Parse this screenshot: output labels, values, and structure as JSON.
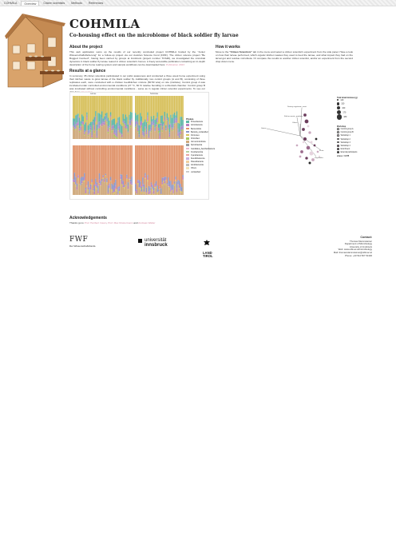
{
  "nav": {
    "items": [
      {
        "label": "COHMILA"
      },
      {
        "label": "Overview"
      },
      {
        "label": "Citizen scientists"
      },
      {
        "label": "Methods"
      },
      {
        "label": "References"
      }
    ]
  },
  "header": {
    "title": "COHMILA",
    "subtitle": "Co-housing effect on the microbiome of black soldier fly larvae"
  },
  "about": {
    "heading": "About the project",
    "text": "This web application sums up the results of our recently concluded project COHMILA funded by the \"Junior Wissenschaftsförderung\" for a follow-up project via our Austrian Science Fund (FWF). The citizen science project \"Be Bugged Involved\", having been carried by groups at Innsbruck (project number TCS48), we investigated the microbial dynamics in black soldier fly larvae reared in citizen scientist's homes. A freely accessible publication containing an in-depth description of the home rearing system and sample workflows can be downloaded here:",
    "link_text": "Publication 2023"
  },
  "results": {
    "heading": "Results at a glance",
    "text": "In summary, 35 citizen scientists participated in our pubic awareness and conducted a three week home experiment using their kitchen waste to grow larvae of the black soldier fly. Additionally, two control groups (A and B), consisting of three replicates each, were conducted with a chicken feed/kitchen mixture (50:50 w/w) on site (institute). Control group A was incubated under controlled environmental conditions (27 °C, 60 % relative humidity) in a Memlab chamber. Control group B was incubated without controlling environmental conditions - same as in regular citizen scientist experiments. To see our data here:",
    "link_text": "Interactive"
  },
  "barchart": {
    "facet_labels": [
      "Larvae",
      "Substrate"
    ],
    "legend_title": "Phylum",
    "legend": [
      {
        "name": "Proteobacteria",
        "color": "#5fb7a6"
      },
      {
        "name": "Actinobacteria",
        "color": "#b980c2"
      },
      {
        "name": "Bacteroidota",
        "color": "#e0946b"
      },
      {
        "name": "Bacteria_unclassified",
        "color": "#8d98c8"
      },
      {
        "name": "Firmicutes",
        "color": "#d7c05c"
      },
      {
        "name": "Chloroflexi",
        "color": "#a8c85e"
      },
      {
        "name": "Verrucomicrobiota",
        "color": "#cfa87a"
      },
      {
        "name": "Spirochaetota",
        "color": "#9aa0a6"
      },
      {
        "name": "Candidatus_Saccharibacteria",
        "color": "#e5b8d0"
      },
      {
        "name": "Fusobacteriota",
        "color": "#b7d2a4"
      },
      {
        "name": "Cyanobacteria",
        "color": "#e8a3a0"
      },
      {
        "name": "Desulfobacterota",
        "color": "#c9b1df"
      },
      {
        "name": "Patescibacteria",
        "color": "#efcf9e"
      },
      {
        "name": "Acidobacteriota",
        "color": "#bdbdbd"
      },
      {
        "name": "Others",
        "color": "#f0e2b8"
      },
      {
        "name": "unclassified",
        "color": "#cccccc"
      }
    ]
  },
  "howitworks": {
    "heading": "How it works",
    "text_pre": "Move to the",
    "text_bold": "\"Citizen Scientists\"",
    "text_post": "tab in the menu and select a citizen scientist's experiment from the side panel. Have a look on how their larvae performed, which organic kitchen wastes they used to feed the larvae, and what impact they had on the larval gut and residue microbiota. Or compare the results to another citizen scientist, and/or an experiment from the second drop-down menu."
  },
  "pcoa": {
    "arrow_labels": [
      "Dietary vegetarian_meat",
      "Kitchen waste_products",
      "Others",
      "Grains",
      "Fruits",
      "Vegetables"
    ],
    "legend_title": "Phase 1 (1 hour)",
    "size_legend_title": "Total larval biomass (g)",
    "size_values": [
      "140",
      "150",
      "160",
      "170",
      "180"
    ],
    "group_title": "Workshop",
    "groups": [
      "Control group A",
      "Control group B",
      "Workshop 1",
      "Workshop 2",
      "Workshop 3",
      "Workshop 4",
      "Enrichment",
      "External participants"
    ],
    "stress": "stress = 0.075"
  },
  "acknowledgements": {
    "heading": "Acknowledgements",
    "text_pre": "Thanks go to",
    "names": [
      "Prof. Heribert Insam",
      "Prof. Max Mustermann",
      "Andreas Walter"
    ]
  },
  "logos": {
    "fwf": "FWF",
    "fwf_sub": "Der Wissenschaftsfonds.",
    "uibk_1": "universität",
    "uibk_2": "innsbruck",
    "tirol_1": "LAND",
    "tirol_2": "TIROL"
  },
  "contact": {
    "heading": "Contact:",
    "lines": [
      "Thomas Klammsteiner",
      "Department of Microbiology",
      "University of Innsbruck",
      "Web: www.uibk.ac.at/microbiology",
      "Mail: thomas.klammsteiner@uibk.ac.at",
      "Phone: +43 512 507 51330"
    ]
  },
  "colors": {
    "accent": "#d58aa0",
    "title": "#222222"
  }
}
